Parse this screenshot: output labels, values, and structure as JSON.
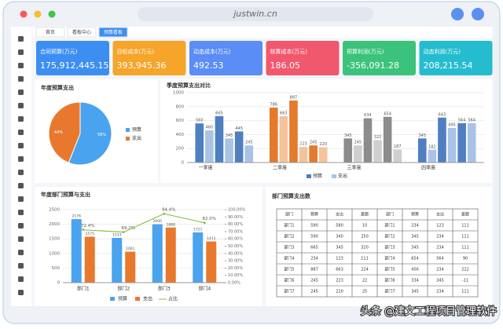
{
  "browser": {
    "url": "justwin.cn"
  },
  "tabs": [
    "首页",
    "看板中心",
    "预算看板"
  ],
  "kpis": [
    {
      "label": "合同预算(万元)",
      "value": "175,912,445.15",
      "color": "#3d8ef2"
    },
    {
      "label": "目标成本(万元)",
      "value": "393,945.36",
      "color": "#f5a52a"
    },
    {
      "label": "动态成本(万元)",
      "value": "492.53",
      "color": "#5a8df5"
    },
    {
      "label": "核算成本(万元)",
      "value": "186.05",
      "color": "#f2586d"
    },
    {
      "label": "预算利润(万元)",
      "value": "-356,091.28",
      "color": "#3cc37b"
    },
    {
      "label": "动态利润(万元)",
      "value": "208,215.54",
      "color": "#25bccf"
    }
  ],
  "pie": {
    "type": "pie",
    "title": "年度预算支出",
    "categories": [
      "预算",
      "支出"
    ],
    "values": [
      56,
      44
    ],
    "value_labels": [
      "56%",
      "44%"
    ],
    "colors": [
      "#4aa3ee",
      "#e8782e"
    ]
  },
  "quarter": {
    "type": "bar",
    "title": "季度预算支出对比",
    "categories": [
      "一季度",
      "二季度",
      "三季度",
      "四季度"
    ],
    "series": [
      {
        "name": "预算",
        "color": "#4f7fbf",
        "values": [
          [
            560,
            665,
            445
          ],
          [
            786,
            887,
            245
          ],
          [
            345,
            634,
            654
          ],
          [
            345,
            643,
            564
          ]
        ]
      },
      {
        "name": "支出",
        "color": "#a9c3e6",
        "values": [
          [
            460,
            345,
            245
          ],
          [
            663,
            223,
            220
          ],
          [
            245,
            322,
            187
          ],
          [
            182,
            495,
            564
          ]
        ]
      }
    ],
    "category_colors": [
      [
        "#4f7fbf",
        "#a9c3e6"
      ],
      [
        "#e37a2c",
        "#f3c49c"
      ],
      [
        "#8c8c8c",
        "#cfcfcf"
      ],
      [
        "#4f7fbf",
        "#a9c3e6"
      ]
    ],
    "ylim": [
      0,
      1000
    ],
    "yticks": [
      0,
      200,
      400,
      600,
      800,
      1000
    ]
  },
  "annual": {
    "type": "bar",
    "title": "年度部门预算与支出",
    "categories": [
      "部门1",
      "部门2",
      "部门3",
      "部门4"
    ],
    "series": [
      {
        "name": "预算",
        "color": "#4aa3ee",
        "values": [
          2176,
          1533,
          2000,
          1721
        ]
      },
      {
        "name": "支出",
        "color": "#e8782e",
        "values": [
          1575,
          1061,
          1888,
          1411
        ]
      },
      {
        "name": "占比",
        "color": "#8bc34a",
        "axis": "y2",
        "values": [
          72.4,
          69.2,
          94.4,
          82.0
        ],
        "value_labels": [
          "72.4%",
          "69.2%",
          "94.4%",
          "82.0%"
        ]
      }
    ],
    "ylim": [
      0,
      2500
    ],
    "yticks": [
      0,
      500,
      1000,
      1500,
      2000,
      2500
    ],
    "y2lim": [
      0,
      100
    ],
    "y2ticks": [
      {
        "value": 0,
        "label": "0.00%"
      },
      {
        "value": 10,
        "label": "10.00%"
      },
      {
        "value": 20,
        "label": "20.00%"
      },
      {
        "value": 30,
        "label": "30.00%"
      },
      {
        "value": 40,
        "label": "40.00%"
      },
      {
        "value": 50,
        "label": "50.00%"
      },
      {
        "value": 60,
        "label": "60.00%"
      },
      {
        "value": 70,
        "label": "70.00%"
      },
      {
        "value": 80,
        "label": "80.00%"
      },
      {
        "value": 90,
        "label": "90.00%"
      },
      {
        "value": 100,
        "label": "100.00%"
      }
    ]
  },
  "table": {
    "title": "部门预算支出数",
    "headers": [
      "部门",
      "预算",
      "支出",
      "差额",
      "部门",
      "预算",
      "支出",
      "差额"
    ],
    "rows": [
      [
        "部门1",
        "590",
        "580",
        "10",
        "部门1",
        "234",
        "123",
        "111"
      ],
      [
        "部门2",
        "590",
        "340",
        "250",
        "部门2",
        "345",
        "234",
        "111"
      ],
      [
        "部门3",
        "665",
        "345",
        "320",
        "部门3",
        "345",
        "234",
        "111"
      ],
      [
        "部门4",
        "234",
        "123",
        "111",
        "部门4",
        "654",
        "564",
        "90"
      ],
      [
        "部门5",
        "887",
        "663",
        "224",
        "部门5",
        "456",
        "234",
        "222"
      ],
      [
        "部门6",
        "245",
        "223",
        "22",
        "部门6",
        "334",
        "345",
        "-11"
      ],
      [
        "部门7",
        "245",
        "220",
        "25",
        "部门7",
        "345",
        "234",
        "111"
      ]
    ]
  },
  "watermark": "头条 @建文工程项目管理软件"
}
